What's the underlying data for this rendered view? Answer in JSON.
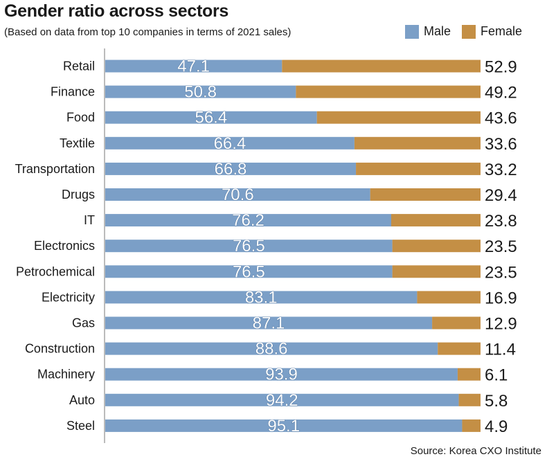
{
  "colors": {
    "male": "#7b9fc7",
    "female": "#c48f45",
    "axis": "#777777",
    "value_text": "#ffffff",
    "value_stroke": "#4a6f99"
  },
  "header": {
    "title": "Gender ratio across sectors",
    "subtitle": "(Based on data from top 10 companies in terms of 2021 sales)"
  },
  "footer": {
    "source": "Source: Korea CXO Institute"
  },
  "chart_data": {
    "type": "bar",
    "orientation": "horizontal",
    "stacked": true,
    "title": "Gender ratio across sectors",
    "subtitle": "(Based on data from top 10 companies in terms of 2021 sales)",
    "categories": [
      "Retail",
      "Finance",
      "Food",
      "Textile",
      "Transportation",
      "Drugs",
      "IT",
      "Electronics",
      "Petrochemical",
      "Electricity",
      "Gas",
      "Construction",
      "Machinery",
      "Auto",
      "Steel"
    ],
    "series": [
      {
        "name": "Male",
        "values": [
          47.1,
          50.8,
          56.4,
          66.4,
          66.8,
          70.6,
          76.2,
          76.5,
          76.5,
          83.1,
          87.1,
          88.6,
          93.9,
          94.2,
          95.1
        ]
      },
      {
        "name": "Female",
        "values": [
          52.9,
          49.2,
          43.6,
          33.6,
          33.2,
          29.4,
          23.8,
          23.5,
          23.5,
          16.9,
          12.9,
          11.4,
          6.1,
          5.8,
          4.9
        ]
      }
    ],
    "xlim": [
      0,
      100
    ],
    "grid": false,
    "legend_position": "top-right"
  }
}
